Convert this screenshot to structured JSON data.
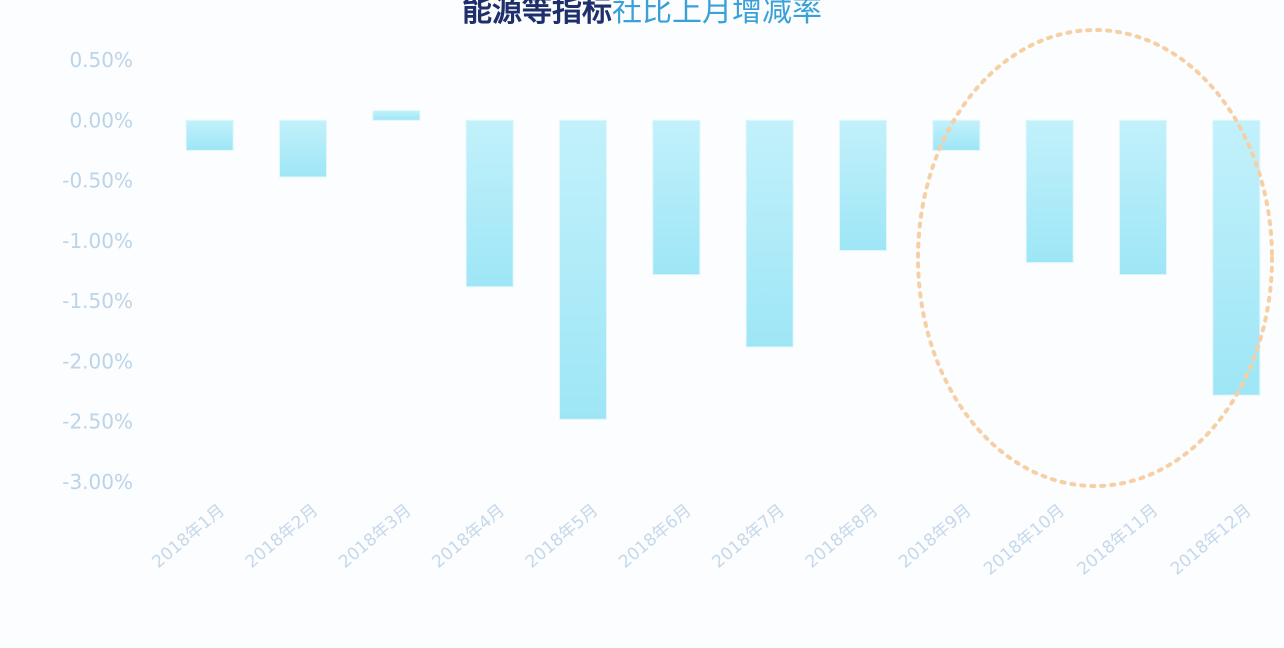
{
  "title": {
    "part1": "能源等指标",
    "part2": "社比上月增减率"
  },
  "chart_data": {
    "type": "bar",
    "categories": [
      "2018年1月",
      "2018年2月",
      "2018年3月",
      "2018年4月",
      "2018年5月",
      "2018年6月",
      "2018年7月",
      "2018年8月",
      "2018年9月",
      "2018年10月",
      "2018年11月",
      "2018年12月"
    ],
    "values": [
      -0.25,
      -0.47,
      0.08,
      -1.38,
      -2.48,
      -1.28,
      -1.88,
      -1.08,
      -0.25,
      -1.18,
      -1.28,
      -2.28
    ],
    "y_ticks": [
      "0.50%",
      "0.00%",
      "-0.50%",
      "-1.00%",
      "-1.50%",
      "-2.00%",
      "-2.50%",
      "-3.00%"
    ],
    "ylim": [
      -3.0,
      0.5
    ],
    "grid": false,
    "annotation": "dashed-ellipse-highlight-last-four-months",
    "colors": {
      "bar": "#9ee6f6",
      "bar_top": "#c2f1fb",
      "ellipse": "#f7cfa4"
    }
  }
}
